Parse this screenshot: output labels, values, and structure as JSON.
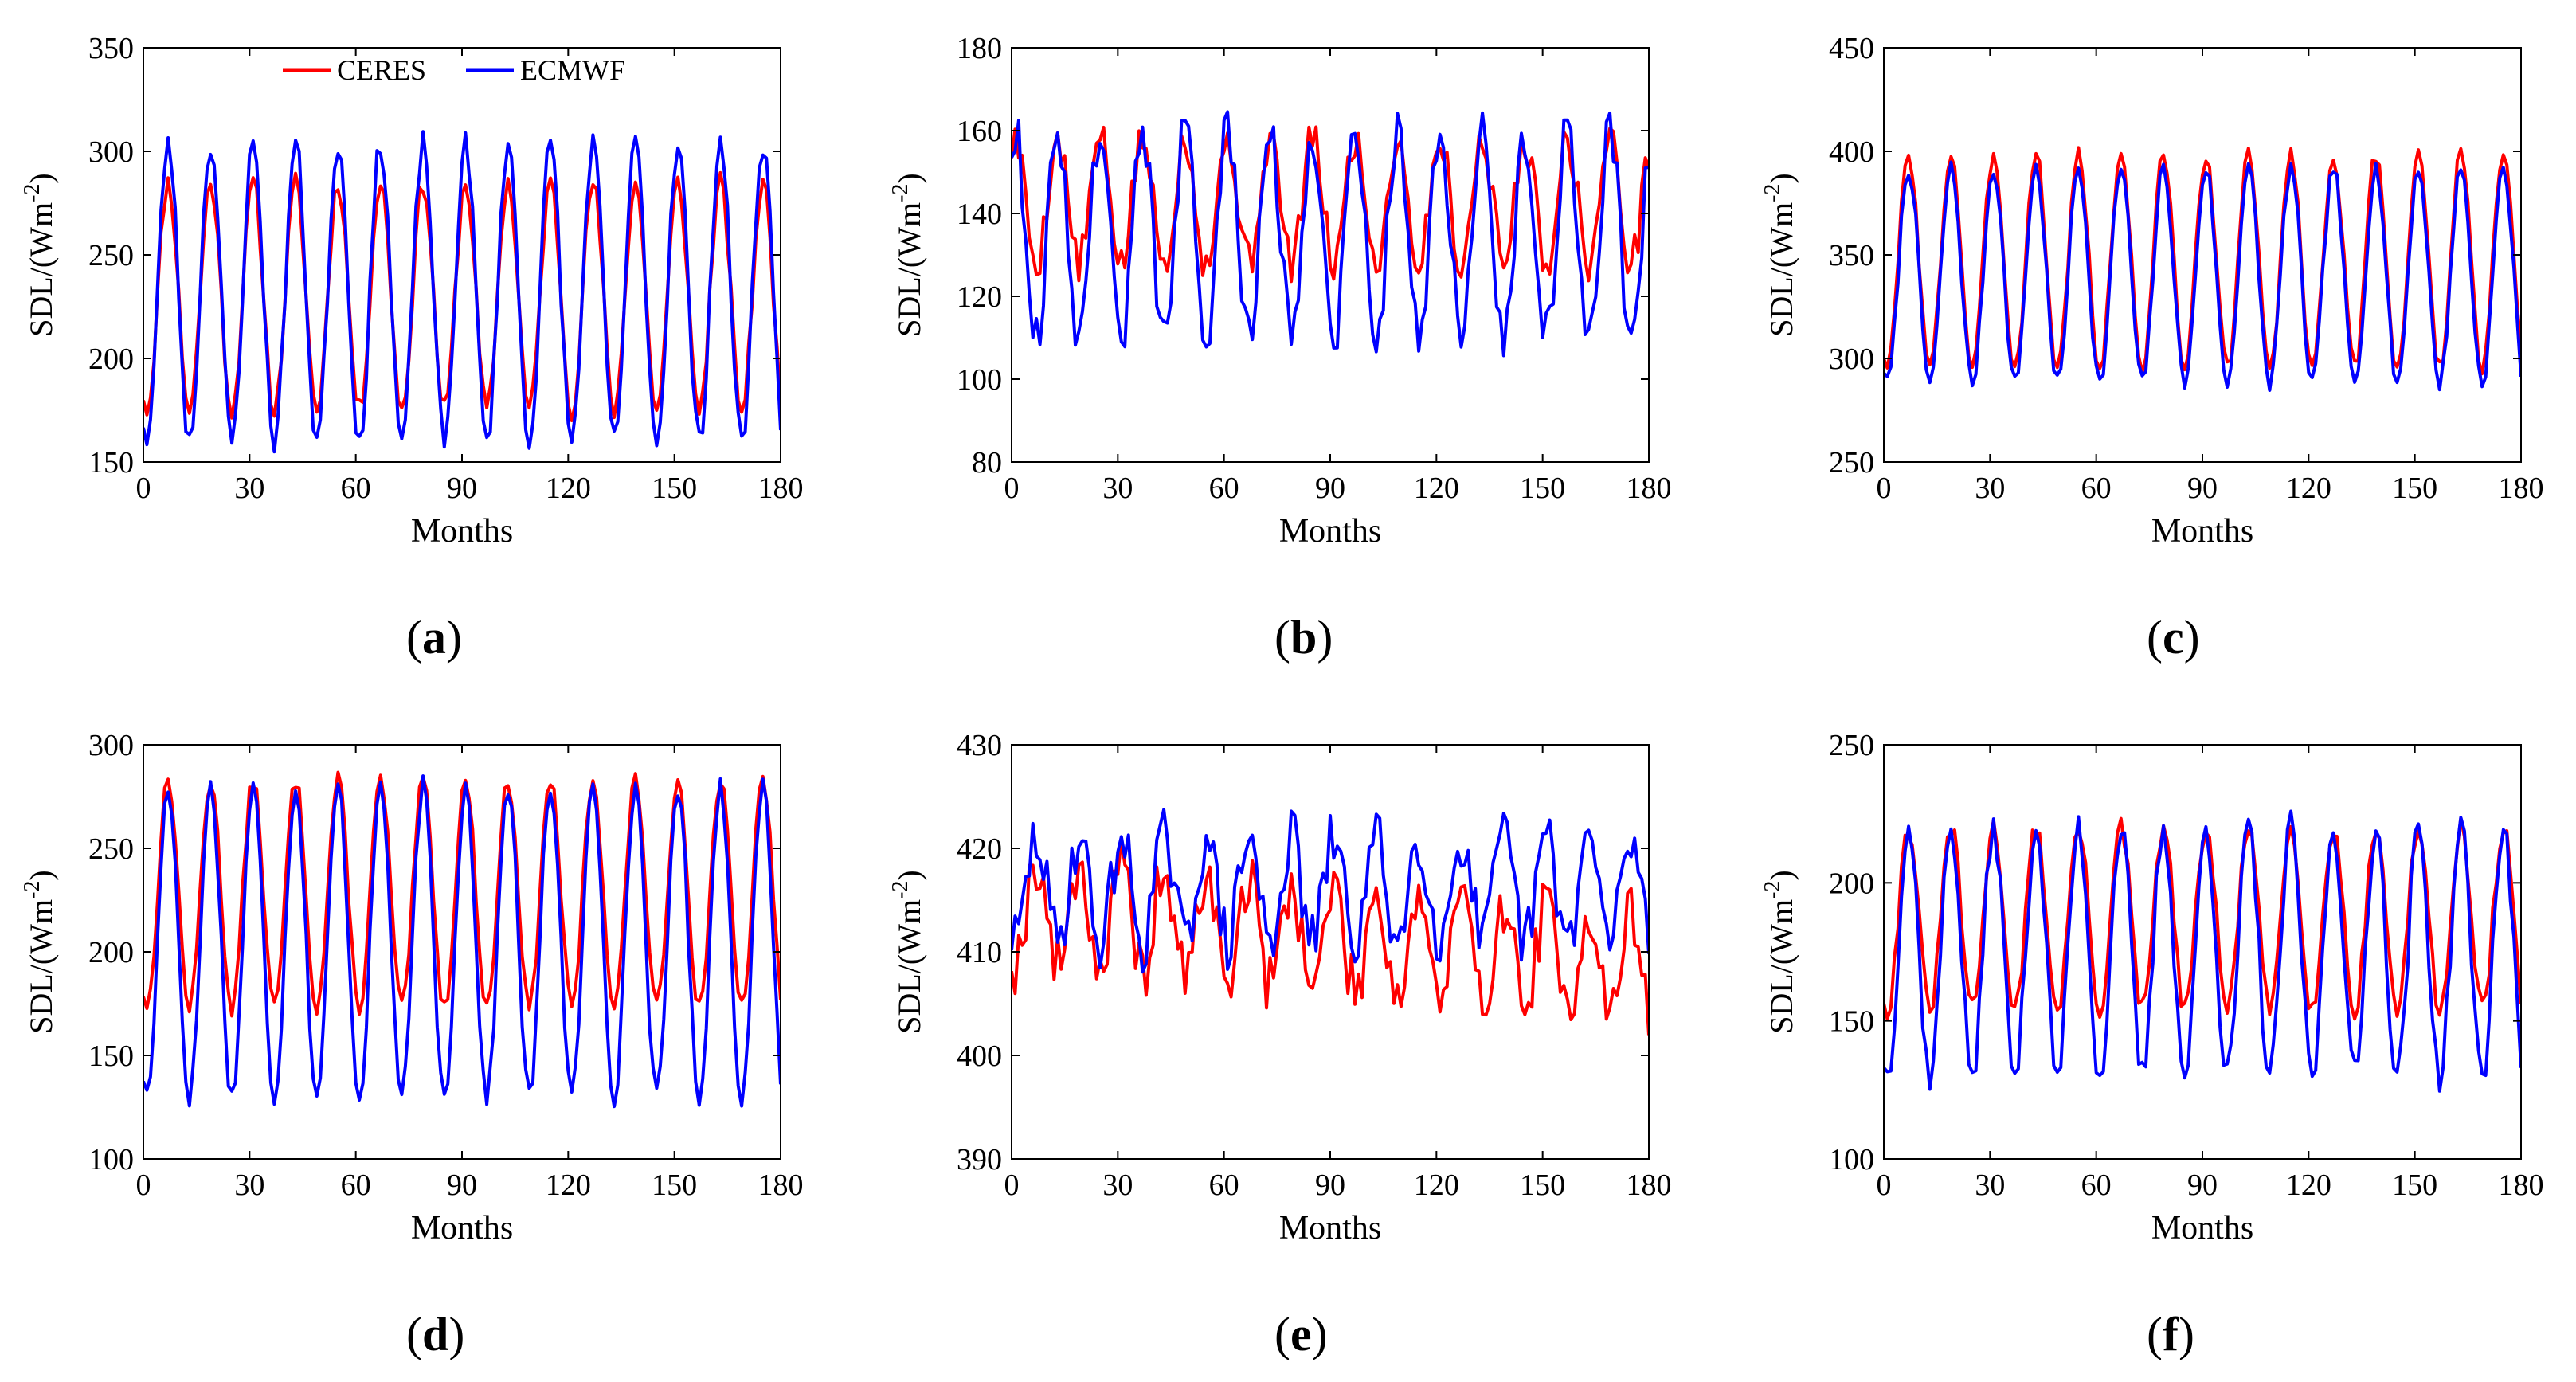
{
  "figure": {
    "legend": [
      "CERES",
      "ECMWF"
    ],
    "xlabel": "Months",
    "ylabel": "SDL/(Wm",
    "ylabel_sup": "-2",
    "ylabel_close": ")"
  },
  "colors": {
    "CERES": "#ff0000",
    "ECMWF": "#0000ff"
  },
  "chart_data": [
    {
      "type": "line",
      "panel": "a",
      "xlim": [
        0,
        180
      ],
      "xticks": [
        0,
        30,
        60,
        90,
        120,
        150,
        180
      ],
      "ylim": [
        150,
        350
      ],
      "yticks": [
        150,
        200,
        250,
        300,
        350
      ],
      "xlabel": "Months",
      "ylabel": "SDL/(Wm-2)",
      "legend": "top-left",
      "period": 12,
      "phase": 7,
      "n": 180,
      "series": [
        {
          "name": "CERES",
          "mean": 230,
          "amp": 55,
          "noise": 5,
          "seed": 11
        },
        {
          "name": "ECMWF",
          "mean": 232,
          "amp": 72,
          "noise": 6,
          "seed": 23
        }
      ]
    },
    {
      "type": "line",
      "panel": "b",
      "xlim": [
        0,
        180
      ],
      "xticks": [
        0,
        30,
        60,
        90,
        120,
        150,
        180
      ],
      "ylim": [
        80,
        180
      ],
      "yticks": [
        80,
        100,
        120,
        140,
        160,
        180
      ],
      "xlabel": "Months",
      "ylabel": "SDL/(Wm-2)",
      "period": 12,
      "phase": 1,
      "n": 180,
      "series": [
        {
          "name": "CERES",
          "mean": 143,
          "amp": 15,
          "noise": 5,
          "seed": 5
        },
        {
          "name": "ECMWF",
          "mean": 135,
          "amp": 25,
          "noise": 6,
          "seed": 9
        }
      ]
    },
    {
      "type": "line",
      "panel": "c",
      "xlim": [
        0,
        180
      ],
      "xticks": [
        0,
        30,
        60,
        90,
        120,
        150,
        180
      ],
      "ylim": [
        250,
        450
      ],
      "yticks": [
        250,
        300,
        350,
        400,
        450
      ],
      "xlabel": "Months",
      "ylabel": "SDL/(Wm-2)",
      "period": 12,
      "phase": 7,
      "n": 180,
      "series": [
        {
          "name": "CERES",
          "mean": 347,
          "amp": 52,
          "noise": 4,
          "seed": 3
        },
        {
          "name": "ECMWF",
          "mean": 340,
          "amp": 52,
          "noise": 4,
          "seed": 7
        }
      ]
    },
    {
      "type": "line",
      "panel": "d",
      "xlim": [
        0,
        180
      ],
      "xticks": [
        0,
        30,
        60,
        90,
        120,
        150,
        180
      ],
      "ylim": [
        100,
        300
      ],
      "yticks": [
        100,
        150,
        200,
        250,
        300
      ],
      "xlabel": "Months",
      "ylabel": "SDL/(Wm-2)",
      "period": 12,
      "phase": 7,
      "n": 180,
      "series": [
        {
          "name": "CERES",
          "mean": 228,
          "amp": 55,
          "noise": 4,
          "seed": 13
        },
        {
          "name": "ECMWF",
          "mean": 205,
          "amp": 75,
          "noise": 5,
          "seed": 17
        }
      ]
    },
    {
      "type": "line",
      "panel": "e",
      "xlim": [
        0,
        180
      ],
      "xticks": [
        0,
        30,
        60,
        90,
        120,
        150,
        180
      ],
      "ylim": [
        390,
        430
      ],
      "yticks": [
        390,
        400,
        410,
        420,
        430
      ],
      "xlabel": "Months",
      "ylabel": "SDL/(Wm-2)",
      "period": 12,
      "phase": 7,
      "n": 180,
      "series": [
        {
          "name": "CERES",
          "mean": 414,
          "amp": 5,
          "noise": 3,
          "seed": 19,
          "trend": -0.03
        },
        {
          "name": "ECMWF",
          "mean": 416,
          "amp": 5,
          "noise": 3,
          "seed": 29
        }
      ]
    },
    {
      "type": "line",
      "panel": "f",
      "xlim": [
        0,
        180
      ],
      "xticks": [
        0,
        30,
        60,
        90,
        120,
        150,
        180
      ],
      "ylim": [
        100,
        250
      ],
      "yticks": [
        100,
        150,
        200,
        250
      ],
      "xlabel": "Months",
      "ylabel": "SDL/(Wm-2)",
      "period": 12,
      "phase": 7,
      "n": 180,
      "series": [
        {
          "name": "CERES",
          "mean": 187,
          "amp": 33,
          "noise": 4,
          "seed": 31
        },
        {
          "name": "ECMWF",
          "mean": 175,
          "amp": 45,
          "noise": 6,
          "seed": 37
        }
      ]
    }
  ]
}
